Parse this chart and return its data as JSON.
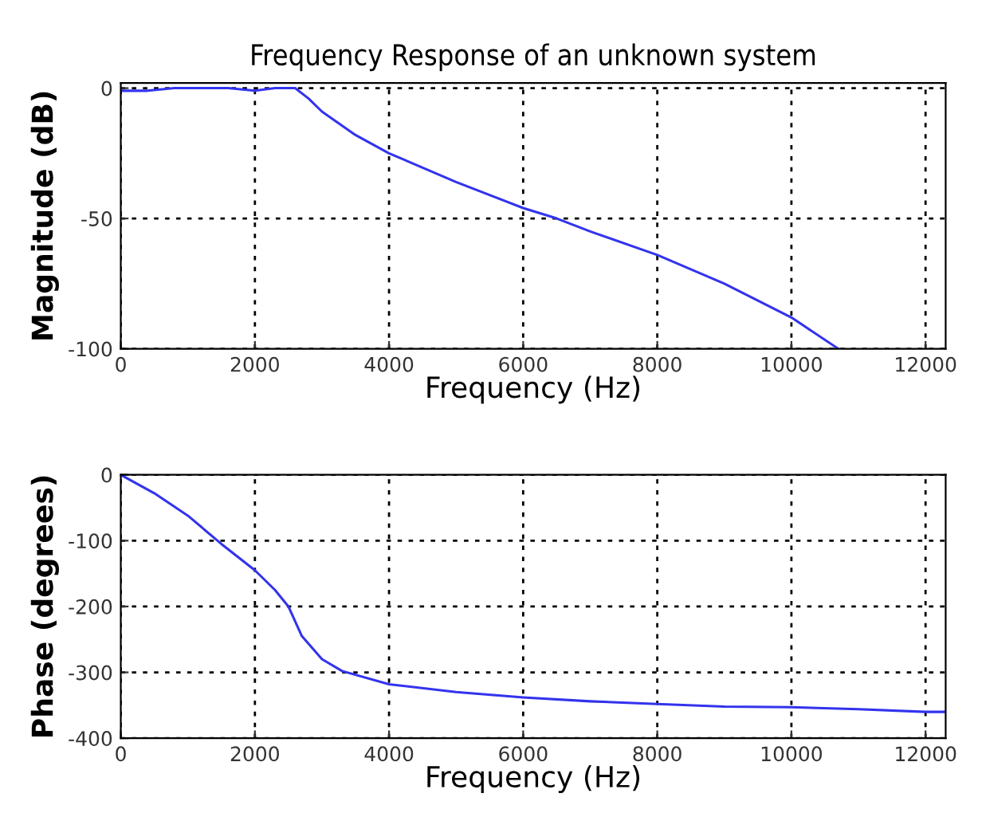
{
  "chart_data": [
    {
      "type": "line",
      "title": "Frequency Response of an unknown system",
      "xlabel": "Frequency (Hz)",
      "ylabel": "Magnitude (dB)",
      "xlim": [
        0,
        12300
      ],
      "ylim": [
        -100,
        2
      ],
      "xticks": [
        0,
        2000,
        4000,
        6000,
        8000,
        10000,
        12000
      ],
      "yticks": [
        {
          "value": -100,
          "label": "-100"
        },
        {
          "value": -50,
          "label": "-50"
        },
        0
      ],
      "grid": true,
      "line_style": "solid",
      "series": [
        {
          "color": "#3333ee",
          "x": [
            0,
            400,
            800,
            1600,
            2000,
            2300,
            2600,
            2800,
            3000,
            3500,
            4000,
            5000,
            6000,
            6500,
            7000,
            8000,
            9000,
            10000,
            10700
          ],
          "values": [
            -1,
            -1,
            0,
            0,
            -1,
            0,
            0,
            -4,
            -9,
            -18,
            -25,
            -36,
            -46,
            -50,
            -55,
            -64,
            -75,
            -88,
            -100
          ]
        }
      ]
    },
    {
      "type": "line",
      "xlabel": "Frequency (Hz)",
      "ylabel": "Phase (degrees)",
      "xlim": [
        0,
        12300
      ],
      "ylim": [
        -400,
        0
      ],
      "xticks": [
        0,
        2000,
        4000,
        6000,
        8000,
        10000,
        12000
      ],
      "yticks": [
        {
          "value": -400,
          "label": "-400"
        },
        {
          "value": -300,
          "label": "-300"
        },
        {
          "value": -200,
          "label": "-200"
        },
        {
          "value": -100,
          "label": "-100"
        },
        0
      ],
      "grid": true,
      "line_style": "solid",
      "series": [
        {
          "color": "#3333ee",
          "x": [
            0,
            500,
            1000,
            1500,
            2000,
            2300,
            2500,
            2700,
            3000,
            3300,
            4000,
            5000,
            6000,
            7000,
            8000,
            9000,
            10000,
            11000,
            12000,
            12300
          ],
          "values": [
            0,
            -28,
            -62,
            -105,
            -145,
            -175,
            -200,
            -245,
            -280,
            -298,
            -318,
            -330,
            -338,
            -344,
            -348,
            -352,
            -353,
            -356,
            -360,
            -360
          ]
        }
      ]
    }
  ]
}
